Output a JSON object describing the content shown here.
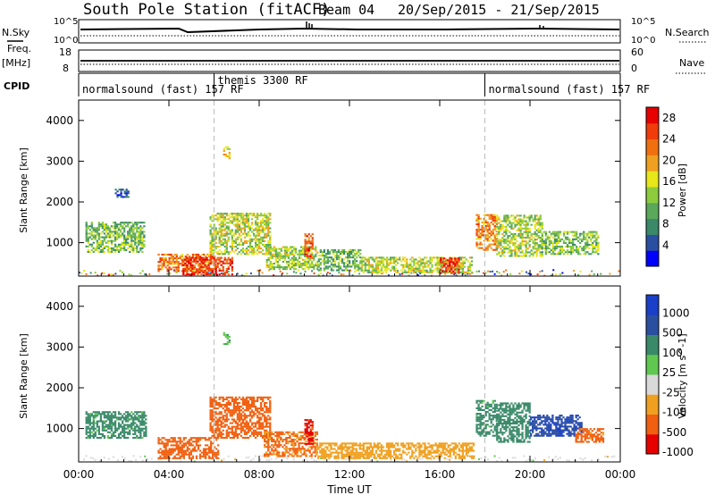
{
  "header": {
    "station": "South Pole Station (fitACF)",
    "beam": "Beam 04",
    "dates": "20/Sep/2015 - 21/Sep/2015"
  },
  "status_panels": {
    "nsky_label": "N.Sky",
    "nsky_ticks": [
      "10^5",
      "10^0"
    ],
    "nsearch_label": "N.Search",
    "nsearch_ticks": [
      "10^5",
      "10^0"
    ],
    "freq_label": "Freq.",
    "freq_unit": "[MHz]",
    "freq_ticks": [
      "18",
      "8"
    ],
    "nave_label": "Nave",
    "nave_ticks": [
      "60",
      "0"
    ],
    "cpid_label": "CPID",
    "cpid_segments": [
      {
        "label": "normalsound (fast) 157 RF",
        "start_hr": 0,
        "end_hr": 6
      },
      {
        "label": "themis 3300 RF",
        "start_hr": 6,
        "end_hr": 18
      },
      {
        "label": "normalsound (fast) 157 RF",
        "start_hr": 18,
        "end_hr": 24
      }
    ]
  },
  "colors": {
    "power_scale": [
      "#0000ff",
      "#2b4fa0",
      "#3a8a6a",
      "#5aa85a",
      "#8ccc3c",
      "#e6e619",
      "#f0a020",
      "#f07010",
      "#f03c0a",
      "#e60000"
    ],
    "velocity_scale": [
      "#e60000",
      "#f06010",
      "#f0a020",
      "#d9d9d9",
      "#60c850",
      "#3a8a6a",
      "#2b4fa0",
      "#1a3fc8"
    ]
  },
  "chart_data": [
    {
      "type": "heatmap",
      "title": "Power",
      "xlabel": "",
      "ylabel": "Slant Range [km]",
      "xlim": [
        0,
        24
      ],
      "ylim": [
        180,
        4500
      ],
      "x_ticks": [
        "00:00",
        "04:00",
        "08:00",
        "12:00",
        "16:00",
        "20:00",
        "00:00"
      ],
      "x_tick_values": [
        0,
        4,
        8,
        12,
        16,
        20,
        24
      ],
      "y_ticks": [
        "1000",
        "2000",
        "3000",
        "4000"
      ],
      "y_tick_values": [
        1000,
        2000,
        3000,
        4000
      ],
      "colorbar_label": "Power [dB]",
      "colorbar_ticks": [
        "4",
        "8",
        "12",
        "16",
        "20",
        "24",
        "28"
      ],
      "colorbar_range": [
        0,
        30
      ],
      "blobs": [
        {
          "t0": 0.3,
          "t1": 2.9,
          "r0": 750,
          "r1": 1500,
          "value": 12
        },
        {
          "t0": 1.6,
          "t1": 2.2,
          "r0": 2100,
          "r1": 2300,
          "value": 5
        },
        {
          "t0": 3.5,
          "t1": 6.0,
          "r0": 280,
          "r1": 700,
          "value": 22
        },
        {
          "t0": 4.6,
          "t1": 6.8,
          "r0": 200,
          "r1": 650,
          "value": 26
        },
        {
          "t0": 5.8,
          "t1": 8.5,
          "r0": 700,
          "r1": 1700,
          "value": 15
        },
        {
          "t0": 6.4,
          "t1": 6.7,
          "r0": 3050,
          "r1": 3350,
          "value": 18
        },
        {
          "t0": 8.3,
          "t1": 10.6,
          "r0": 330,
          "r1": 900,
          "value": 14
        },
        {
          "t0": 10.0,
          "t1": 10.4,
          "r0": 600,
          "r1": 1200,
          "value": 24
        },
        {
          "t0": 10.6,
          "t1": 12.5,
          "r0": 300,
          "r1": 800,
          "value": 11
        },
        {
          "t0": 12.5,
          "t1": 17.4,
          "r0": 250,
          "r1": 650,
          "value": 15
        },
        {
          "t0": 16.0,
          "t1": 16.8,
          "r0": 230,
          "r1": 600,
          "value": 27
        },
        {
          "t0": 17.6,
          "t1": 18.5,
          "r0": 800,
          "r1": 1700,
          "value": 22
        },
        {
          "t0": 18.5,
          "t1": 20.5,
          "r0": 650,
          "r1": 1650,
          "value": 14
        },
        {
          "t0": 20.5,
          "t1": 23.0,
          "r0": 700,
          "r1": 1250,
          "value": 12
        }
      ]
    },
    {
      "type": "heatmap",
      "title": "Velocity",
      "xlabel": "Time UT",
      "ylabel": "Slant Range [km]",
      "xlim": [
        0,
        24
      ],
      "ylim": [
        180,
        4500
      ],
      "x_ticks": [
        "00:00",
        "04:00",
        "08:00",
        "12:00",
        "16:00",
        "20:00",
        "00:00"
      ],
      "x_tick_values": [
        0,
        4,
        8,
        12,
        16,
        20,
        24
      ],
      "y_ticks": [
        "1000",
        "2000",
        "3000",
        "4000"
      ],
      "y_tick_values": [
        1000,
        2000,
        3000,
        4000
      ],
      "colorbar_label": "Velocity [m s^-1]",
      "colorbar_ticks": [
        "1000",
        "500",
        "100",
        "25",
        "-25",
        "-100",
        "-500",
        "-1000"
      ],
      "blobs": [
        {
          "t0": 0.3,
          "t1": 3.0,
          "r0": 750,
          "r1": 1400,
          "value": 150
        },
        {
          "t0": 3.5,
          "t1": 6.2,
          "r0": 250,
          "r1": 750,
          "value": -250
        },
        {
          "t0": 5.8,
          "t1": 8.5,
          "r0": 750,
          "r1": 1750,
          "value": -200
        },
        {
          "t0": 6.4,
          "t1": 6.7,
          "r0": 3050,
          "r1": 3350,
          "value": 80
        },
        {
          "t0": 8.2,
          "t1": 10.6,
          "r0": 300,
          "r1": 900,
          "value": -120
        },
        {
          "t0": 10.0,
          "t1": 10.4,
          "r0": 600,
          "r1": 1200,
          "value": -700
        },
        {
          "t0": 10.5,
          "t1": 17.5,
          "r0": 250,
          "r1": 650,
          "value": -60
        },
        {
          "t0": 17.6,
          "t1": 18.5,
          "r0": 800,
          "r1": 1700,
          "value": 150
        },
        {
          "t0": 18.5,
          "t1": 20.0,
          "r0": 650,
          "r1": 1600,
          "value": 200
        },
        {
          "t0": 20.0,
          "t1": 22.3,
          "r0": 800,
          "r1": 1300,
          "value": 900
        },
        {
          "t0": 22.0,
          "t1": 23.2,
          "r0": 650,
          "r1": 1000,
          "value": -150
        }
      ]
    }
  ]
}
